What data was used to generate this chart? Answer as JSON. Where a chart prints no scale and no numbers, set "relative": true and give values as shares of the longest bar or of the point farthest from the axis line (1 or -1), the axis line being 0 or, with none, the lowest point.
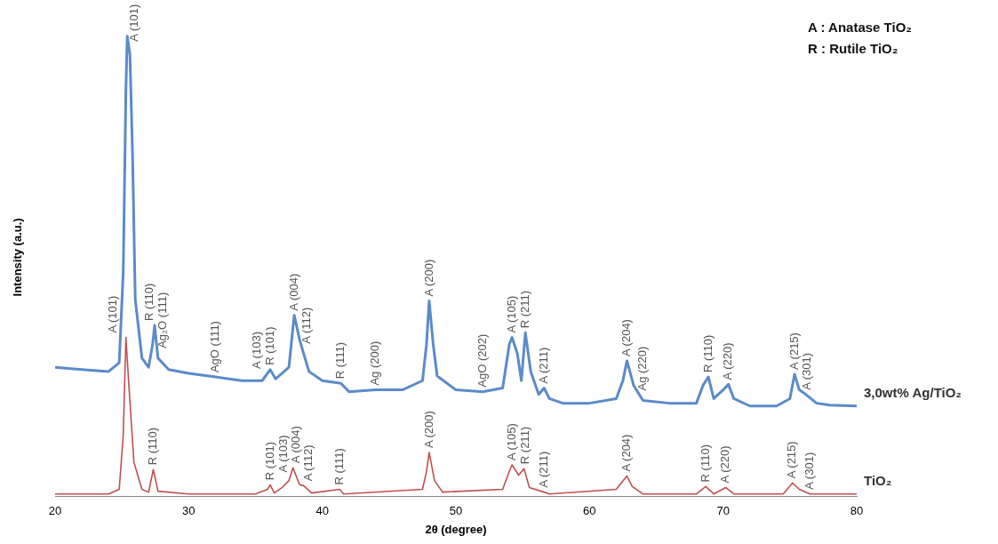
{
  "chart_data": {
    "type": "line",
    "relative": true,
    "xlabel": "2θ (degree)",
    "ylabel": "Intensity (a.u.)",
    "xlim": [
      20,
      80
    ],
    "xticks": [
      20,
      30,
      40,
      50,
      60,
      70,
      80
    ],
    "grid": false,
    "legend": false,
    "marker": "none",
    "line_style": "solid",
    "series": [
      {
        "name": "3,0wt% Ag/TiO₂",
        "color": "#5b8bc9",
        "x": [
          20,
          22,
          24,
          24.8,
          25.1,
          25.3,
          25.4,
          25.6,
          25.8,
          26.0,
          26.5,
          27.0,
          27.3,
          27.45,
          27.7,
          28.5,
          30,
          32,
          34,
          35.5,
          36.1,
          36.5,
          37.0,
          37.5,
          37.9,
          38.3,
          38.6,
          39,
          40,
          41.4,
          42,
          44,
          46,
          47.5,
          47.8,
          48.0,
          48.3,
          48.6,
          50,
          52,
          53.5,
          54.0,
          54.2,
          54.6,
          54.9,
          55.2,
          55.6,
          56.2,
          56.6,
          57,
          58,
          60,
          62,
          62.5,
          62.8,
          63.3,
          64,
          66,
          68,
          68.5,
          68.9,
          69.3,
          70.0,
          70.4,
          70.8,
          72,
          74,
          75,
          75.35,
          75.7,
          76.2,
          77,
          78,
          80
        ],
        "values": [
          0.281,
          0.276,
          0.272,
          0.291,
          0.488,
          0.882,
          1,
          0.961,
          0.74,
          0.429,
          0.301,
          0.281,
          0.331,
          0.372,
          0.301,
          0.276,
          0.268,
          0.26,
          0.252,
          0.252,
          0.276,
          0.256,
          0.268,
          0.281,
          0.394,
          0.341,
          0.311,
          0.272,
          0.252,
          0.246,
          0.228,
          0.232,
          0.232,
          0.252,
          0.331,
          0.425,
          0.331,
          0.262,
          0.232,
          0.228,
          0.236,
          0.331,
          0.346,
          0.311,
          0.252,
          0.356,
          0.272,
          0.222,
          0.236,
          0.213,
          0.203,
          0.203,
          0.213,
          0.252,
          0.295,
          0.242,
          0.209,
          0.203,
          0.203,
          0.242,
          0.26,
          0.213,
          0.232,
          0.244,
          0.213,
          0.197,
          0.197,
          0.213,
          0.266,
          0.232,
          0.222,
          0.203,
          0.199,
          0.197
        ]
      },
      {
        "name": "TiO₂",
        "color": "#c0504d",
        "x": [
          20,
          24,
          24.8,
          25.1,
          25.3,
          25.5,
          25.9,
          26.5,
          27.0,
          27.35,
          27.7,
          30,
          35,
          35.9,
          36.1,
          36.4,
          37.0,
          37.5,
          37.8,
          38.3,
          38.6,
          39.2,
          41.3,
          41.6,
          47.5,
          47.8,
          48.0,
          48.4,
          49,
          53.5,
          54.0,
          54.2,
          54.7,
          55.1,
          55.5,
          56.6,
          57,
          62,
          62.8,
          63.2,
          64,
          68,
          68.7,
          69.3,
          70.2,
          70.8,
          74.5,
          75.2,
          75.7,
          76.5,
          80
        ],
        "values": [
          0.006,
          0.006,
          0.016,
          0.134,
          0.346,
          0.252,
          0.075,
          0.016,
          0.01,
          0.059,
          0.012,
          0.006,
          0.006,
          0.016,
          0.026,
          0.008,
          0.02,
          0.035,
          0.063,
          0.026,
          0.024,
          0.008,
          0.016,
          0.006,
          0.016,
          0.055,
          0.096,
          0.035,
          0.01,
          0.016,
          0.055,
          0.069,
          0.047,
          0.061,
          0.02,
          0.01,
          0.006,
          0.016,
          0.045,
          0.022,
          0.006,
          0.006,
          0.022,
          0.006,
          0.02,
          0.006,
          0.006,
          0.03,
          0.016,
          0.006,
          0.006
        ]
      }
    ],
    "annotations": [
      "A : Anatase TiO₂",
      "R : Rutile TiO₂",
      {
        "text": "A (101)",
        "x": 25.4,
        "y": 1
      },
      {
        "text": "Ag₂O (111)",
        "x": 26.5,
        "y": 0.301
      },
      {
        "text": "R (110)",
        "x": 27.45,
        "y": 0.372
      },
      {
        "text": "AgO (111)",
        "x": 32,
        "y": 0.26
      },
      {
        "text": "R (101)",
        "x": 36.1,
        "y": 0.276
      },
      {
        "text": "A (103)",
        "x": 37.0,
        "y": 0.268
      },
      {
        "text": "A (004)",
        "x": 37.9,
        "y": 0.394
      },
      {
        "text": "A (112)",
        "x": 38.6,
        "y": 0.311
      },
      {
        "text": "R (111)",
        "x": 41.4,
        "y": 0.246
      },
      {
        "text": "Ag (200)",
        "x": 44,
        "y": 0.232
      },
      {
        "text": "A (200)",
        "x": 48.0,
        "y": 0.425
      },
      {
        "text": "AgO (202)",
        "x": 52,
        "y": 0.228
      },
      {
        "text": "A (105)",
        "x": 54.2,
        "y": 0.346
      },
      {
        "text": "R (211)",
        "x": 55.2,
        "y": 0.356
      },
      {
        "text": "A (211)",
        "x": 56.6,
        "y": 0.236
      },
      {
        "text": "A (204)",
        "x": 62.8,
        "y": 0.295
      },
      {
        "text": "Ag (220)",
        "x": 64,
        "y": 0.209
      },
      {
        "text": "R (110)",
        "x": 68.9,
        "y": 0.26
      },
      {
        "text": "A (220)",
        "x": 70.4,
        "y": 0.244
      },
      {
        "text": "A (215)",
        "x": 75.35,
        "y": 0.266
      },
      {
        "text": "A (301)",
        "x": 76.2,
        "y": 0.222
      },
      {
        "text": "A (101)",
        "x": 25.3,
        "y": 0.346
      },
      {
        "text": "R (110)",
        "x": 27.35,
        "y": 0.059
      },
      {
        "text": "R (101)",
        "x": 36.1,
        "y": 0.026
      },
      {
        "text": "A (103)",
        "x": 37.0,
        "y": 0.02
      },
      {
        "text": "A (004)",
        "x": 37.8,
        "y": 0.063
      },
      {
        "text": "A (112)",
        "x": 38.6,
        "y": 0.024
      },
      {
        "text": "R (111)",
        "x": 41.3,
        "y": 0.016
      },
      {
        "text": "A (200)",
        "x": 48.0,
        "y": 0.096
      },
      {
        "text": "A (105)",
        "x": 54.2,
        "y": 0.069
      },
      {
        "text": "R (211)",
        "x": 55.1,
        "y": 0.061
      },
      {
        "text": "A (211)",
        "x": 56.6,
        "y": 0.01
      },
      {
        "text": "A (204)",
        "x": 62.8,
        "y": 0.045
      },
      {
        "text": "R (110)",
        "x": 68.7,
        "y": 0.022
      },
      {
        "text": "A (220)",
        "x": 70.2,
        "y": 0.02
      },
      {
        "text": "A (215)",
        "x": 75.2,
        "y": 0.03
      },
      {
        "text": "A (301)",
        "x": 76.5,
        "y": 0.006
      }
    ]
  }
}
